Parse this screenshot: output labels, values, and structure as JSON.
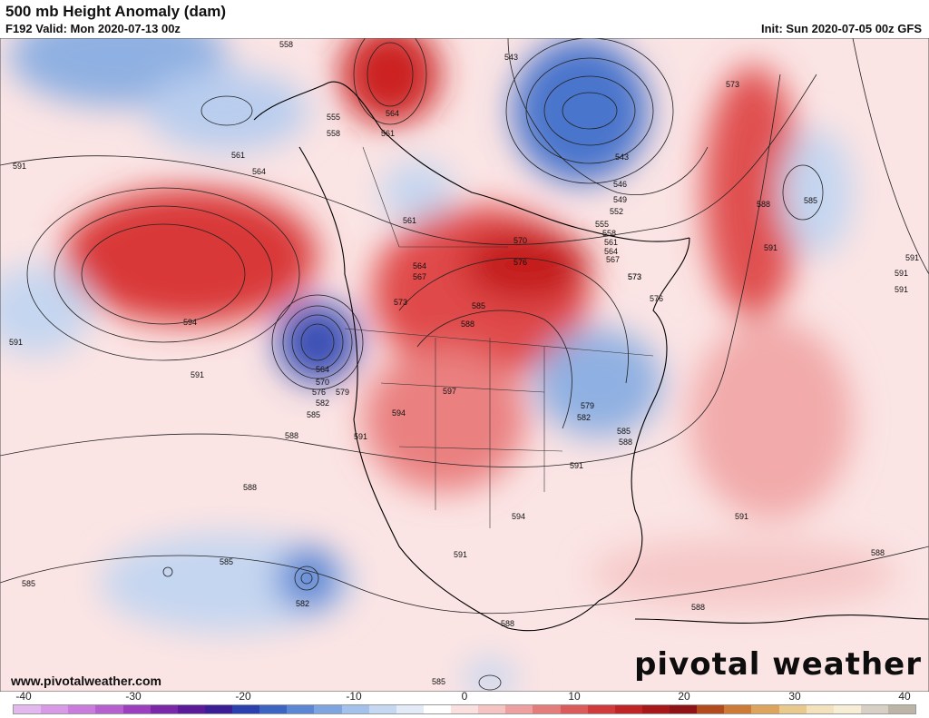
{
  "header": {
    "title": "500 mb Height Anomaly (dam)",
    "valid": "F192 Valid: Mon 2020-07-13 00z",
    "init": "Init: Sun 2020-07-05 00z GFS"
  },
  "footer": {
    "website": "www.pivotalweather.com",
    "brand": "pivotal weather"
  },
  "colorbar": {
    "ticks": [
      "-40",
      "-30",
      "-20",
      "-10",
      "0",
      "10",
      "20",
      "30",
      "40"
    ],
    "colors": [
      "#e3b8ee",
      "#d89ae6",
      "#c97cdb",
      "#b65fcf",
      "#9b3fbf",
      "#7a27aa",
      "#5b1a99",
      "#3b1e96",
      "#2b3fae",
      "#3c64c3",
      "#5a86d4",
      "#7ea5e0",
      "#a3c1ea",
      "#c6d8f1",
      "#e2ebf7",
      "#ffffff",
      "#fbe0e0",
      "#f6c3c3",
      "#eea0a0",
      "#e57c7c",
      "#db5a5a",
      "#d03a3a",
      "#c02424",
      "#a8171a",
      "#8e1216",
      "#b34a1e",
      "#cc7a35",
      "#dca45c",
      "#e9c98c",
      "#f3e2bb",
      "#f8eed6",
      "#d8d0c4",
      "#bdb4a8"
    ]
  },
  "contour_labels": [
    "558",
    "555",
    "558",
    "561",
    "564",
    "564",
    "561",
    "543",
    "546",
    "549",
    "552",
    "555",
    "558",
    "561",
    "564",
    "567",
    "573",
    "591",
    "573",
    "588",
    "591",
    "591",
    "585",
    "591",
    "561",
    "564",
    "567",
    "573",
    "570",
    "576",
    "585",
    "588",
    "576",
    "573",
    "594",
    "591",
    "564",
    "570",
    "576",
    "579",
    "582",
    "585",
    "597",
    "594",
    "588",
    "591",
    "579",
    "582",
    "585",
    "588",
    "591",
    "591",
    "594",
    "591",
    "588",
    "585",
    "582",
    "585",
    "591",
    "588",
    "588",
    "588",
    "585",
    "591",
    "543"
  ]
}
